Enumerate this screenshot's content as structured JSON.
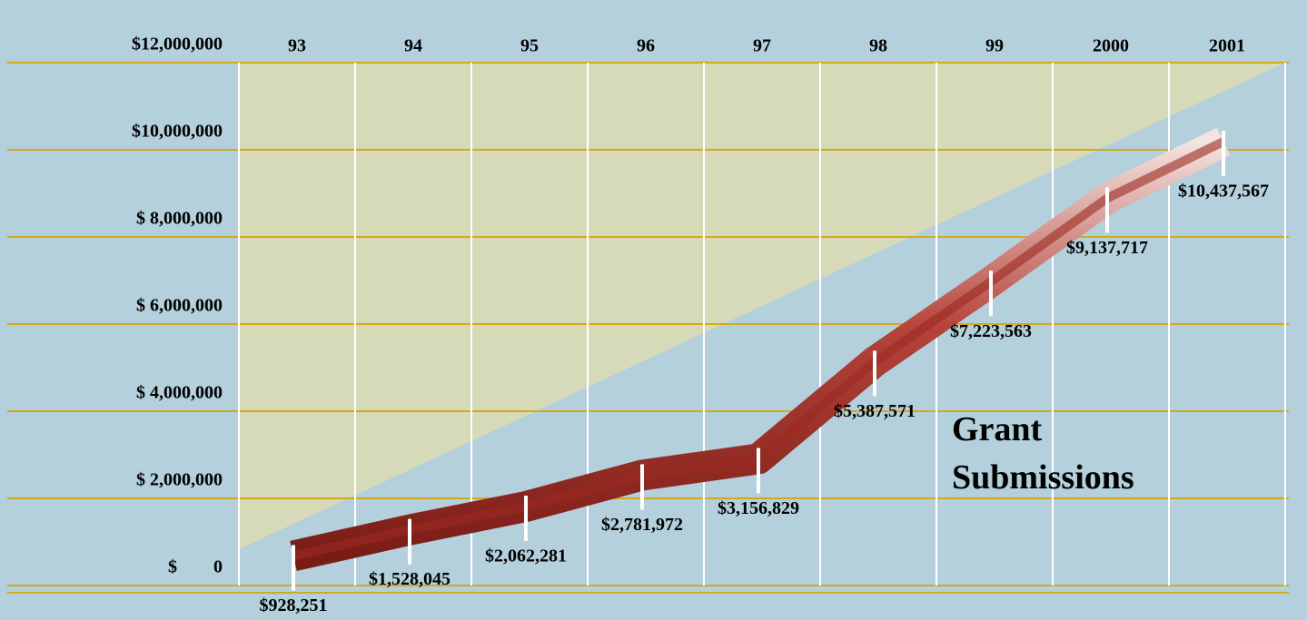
{
  "chart_data": {
    "type": "line",
    "annotation": "Grant Submissions",
    "categories": [
      "93",
      "94",
      "95",
      "96",
      "97",
      "98",
      "99",
      "2000",
      "2001"
    ],
    "values": [
      928251,
      1528045,
      2062281,
      2781972,
      3156829,
      5387571,
      7223563,
      9137717,
      10437567
    ],
    "value_labels": [
      "$928,251",
      "$1,528,045",
      "$2,062,281",
      "$2,781,972",
      "$3,156,829",
      "$5,387,571",
      "$7,223,563",
      "$9,137,717",
      "$10,437,567"
    ],
    "color": "#9b2a22",
    "ylim": [
      0,
      12000000
    ],
    "yticks": [
      {
        "value": 0,
        "label": "$        0"
      },
      {
        "value": 2000000,
        "label": "$ 2,000,000"
      },
      {
        "value": 4000000,
        "label": "$ 4,000,000"
      },
      {
        "value": 6000000,
        "label": "$ 6,000,000"
      },
      {
        "value": 8000000,
        "label": "$ 8,000,000"
      },
      {
        "value": 10000000,
        "label": "$10,000,000"
      },
      {
        "value": 12000000,
        "label": "$12,000,000"
      }
    ],
    "grid": true
  }
}
